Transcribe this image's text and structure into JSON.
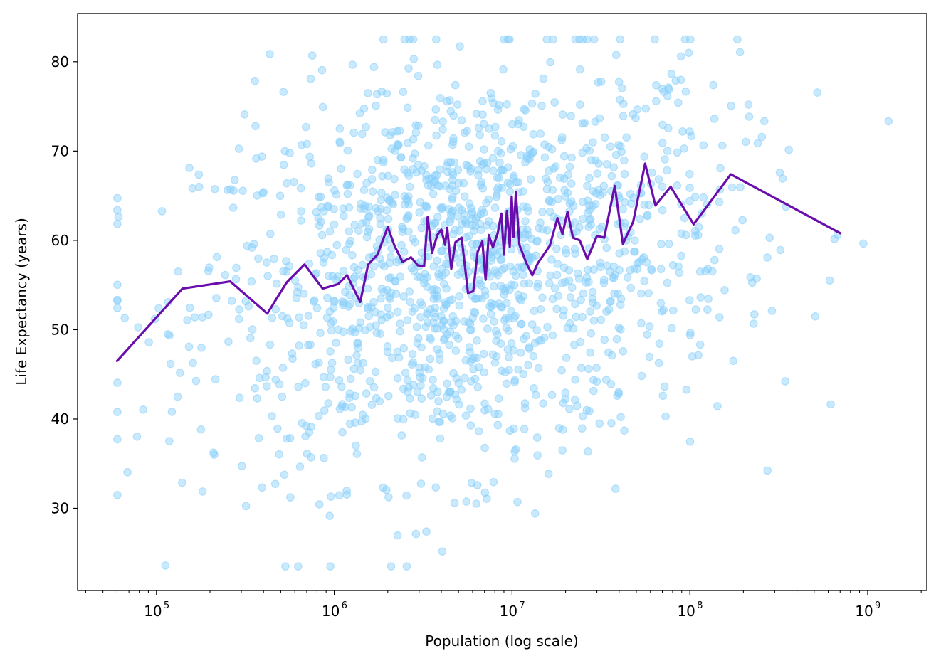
{
  "chart_data": {
    "type": "scatter",
    "title": "",
    "xlabel": "Population (log scale)",
    "ylabel": "Life Expectancy (years)",
    "xscale": "log",
    "xlim": [
      36000,
      2150000000
    ],
    "ylim": [
      20.8,
      85.4
    ],
    "grid": false,
    "x_ticks": [
      {
        "value": 100000,
        "base": "10",
        "exp": "5"
      },
      {
        "value": 1000000,
        "base": "10",
        "exp": "6"
      },
      {
        "value": 10000000,
        "base": "10",
        "exp": "7"
      },
      {
        "value": 100000000,
        "base": "10",
        "exp": "8"
      },
      {
        "value": 1000000000,
        "base": "10",
        "exp": "9"
      }
    ],
    "y_ticks": [
      30,
      40,
      50,
      60,
      70,
      80
    ],
    "y_tick_labels": [
      "30",
      "40",
      "50",
      "60",
      "70",
      "80"
    ],
    "colors": {
      "scatter": "#87cefa",
      "trend": "#6a0dad",
      "axes": "#000000"
    },
    "series": [
      {
        "type": "line",
        "points": [
          [
            60000,
            46.5
          ],
          [
            140000,
            54.6
          ],
          [
            260000,
            55.4
          ],
          [
            420000,
            51.8
          ],
          [
            540000,
            55.3
          ],
          [
            680000,
            57.3
          ],
          [
            860000,
            54.6
          ],
          [
            1050000,
            55.1
          ],
          [
            1180000,
            56.1
          ],
          [
            1400000,
            53.1
          ],
          [
            1550000,
            57.3
          ],
          [
            1750000,
            58.4
          ],
          [
            2000000,
            61.5
          ],
          [
            2180000,
            59.4
          ],
          [
            2420000,
            57.6
          ],
          [
            2700000,
            58.1
          ],
          [
            2950000,
            57.2
          ],
          [
            3200000,
            57.1
          ],
          [
            3350000,
            62.6
          ],
          [
            3550000,
            58.6
          ],
          [
            3800000,
            60.6
          ],
          [
            4000000,
            61.2
          ],
          [
            4200000,
            59.5
          ],
          [
            4320000,
            61.4
          ],
          [
            4550000,
            56.8
          ],
          [
            4800000,
            59.8
          ],
          [
            5200000,
            60.3
          ],
          [
            5650000,
            54.1
          ],
          [
            6050000,
            54.3
          ],
          [
            6400000,
            58.7
          ],
          [
            6800000,
            59.9
          ],
          [
            7100000,
            55.6
          ],
          [
            7400000,
            60.6
          ],
          [
            7800000,
            59.2
          ],
          [
            8300000,
            60.8
          ],
          [
            8700000,
            63.0
          ],
          [
            9000000,
            58.4
          ],
          [
            9350000,
            63.3
          ],
          [
            9700000,
            59.3
          ],
          [
            9950000,
            64.9
          ],
          [
            10200000,
            60.4
          ],
          [
            10500000,
            65.4
          ],
          [
            11000000,
            59.5
          ],
          [
            12000000,
            57.5
          ],
          [
            13000000,
            56.1
          ],
          [
            14000000,
            57.5
          ],
          [
            15300000,
            58.6
          ],
          [
            16300000,
            59.4
          ],
          [
            18000000,
            62.5
          ],
          [
            19200000,
            60.7
          ],
          [
            20500000,
            63.2
          ],
          [
            22000000,
            60.3
          ],
          [
            24000000,
            60.0
          ],
          [
            26500000,
            57.9
          ],
          [
            30000000,
            60.5
          ],
          [
            33000000,
            60.3
          ],
          [
            37800000,
            66.1
          ],
          [
            42000000,
            59.6
          ],
          [
            48000000,
            62.1
          ],
          [
            56000000,
            68.6
          ],
          [
            64000000,
            63.9
          ],
          [
            78000000,
            66.0
          ],
          [
            105000000,
            61.8
          ],
          [
            170000000,
            67.4
          ],
          [
            700000000,
            60.8
          ]
        ]
      }
    ]
  }
}
